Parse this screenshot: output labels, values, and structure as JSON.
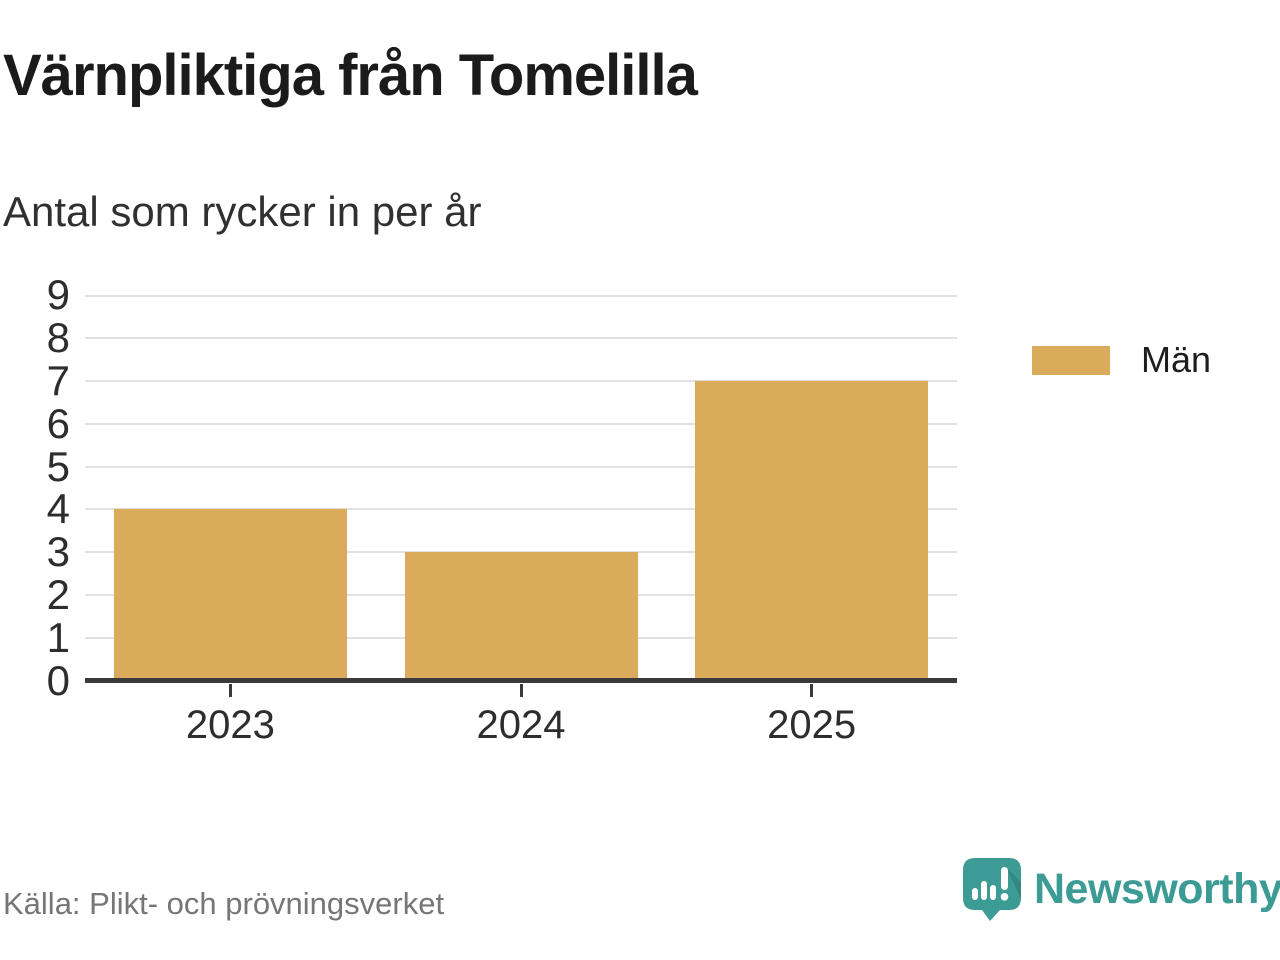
{
  "header": {
    "title": "Värnpliktiga från Tomelilla",
    "subtitle": "Antal som rycker in per år"
  },
  "chart_data": {
    "type": "bar",
    "title": "Värnpliktiga från Tomelilla",
    "subtitle": "Antal som rycker in per år",
    "categories": [
      "2023",
      "2024",
      "2025"
    ],
    "series": [
      {
        "name": "Män",
        "values": [
          4,
          3,
          7
        ]
      }
    ],
    "xlabel": "",
    "ylabel": "Antal som rycker in per år",
    "ylim": [
      0,
      9
    ],
    "yticks": [
      0,
      1,
      2,
      3,
      4,
      5,
      6,
      7,
      8,
      9
    ],
    "grid": true,
    "legend_position": "right",
    "bar_color": "#D9AB5B",
    "axis_color": "#3a3a3a",
    "gridline_color": "#e1e1e1"
  },
  "legend": {
    "items": [
      {
        "label": "Män",
        "color": "#D9AB5B"
      }
    ]
  },
  "footer": {
    "source": "Källa: Plikt- och prövningsverket"
  },
  "branding": {
    "logo_text": "Newsworthy",
    "logo_icon": "bar-chart-speech-bubble-icon",
    "color": "#3C9B94"
  }
}
